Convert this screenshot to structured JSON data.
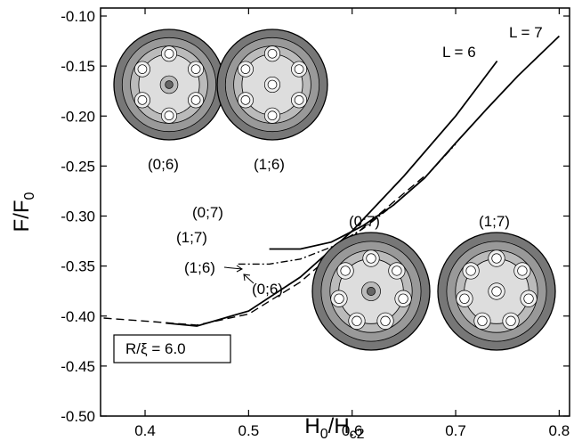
{
  "chart_data": {
    "type": "line",
    "xlabel": [
      "H",
      "0",
      "/H",
      "c2"
    ],
    "ylabel": [
      "F/F",
      "0"
    ],
    "xlim": [
      0.357,
      0.81
    ],
    "xticks": [
      0.4,
      0.5,
      0.6,
      0.7,
      0.8
    ],
    "ylim": [
      -0.5,
      -0.1
    ],
    "yticks": [
      {
        "value": -0.5,
        "label": "-0.50"
      },
      {
        "value": -0.45,
        "label": "-0.45"
      },
      {
        "value": -0.4,
        "label": "-0.40"
      },
      {
        "value": -0.35,
        "label": "-0.35"
      },
      {
        "value": -0.3,
        "label": "-0.30"
      },
      {
        "value": -0.25,
        "label": "-0.25"
      },
      {
        "value": -0.2,
        "label": "-0.20"
      },
      {
        "value": -0.15,
        "label": "-0.15"
      },
      {
        "value": -0.1,
        "label": "-0.10"
      }
    ],
    "series": [
      {
        "name": "(0;7)",
        "color": "#000",
        "dash": "solid",
        "x": [
          0.52,
          0.55,
          0.58,
          0.61,
          0.64,
          0.67,
          0.7,
          0.73,
          0.76,
          0.8
        ],
        "values": [
          -0.333,
          -0.333,
          -0.326,
          -0.31,
          -0.289,
          -0.262,
          -0.227,
          -0.193,
          -0.16,
          -0.12
        ]
      },
      {
        "name": "(1;7)",
        "color": "#000",
        "dash": "dashdot",
        "x": [
          0.49,
          0.52,
          0.55,
          0.58,
          0.61,
          0.64,
          0.67,
          0.7
        ],
        "values": [
          -0.348,
          -0.348,
          -0.343,
          -0.331,
          -0.313,
          -0.289,
          -0.262,
          -0.228
        ]
      },
      {
        "name": "(1;6)",
        "color": "#000",
        "dash": "dashed",
        "x": [
          0.36,
          0.4,
          0.45,
          0.5,
          0.55,
          0.6,
          0.64,
          0.67
        ],
        "values": [
          -0.402,
          -0.405,
          -0.409,
          -0.398,
          -0.366,
          -0.321,
          -0.286,
          -0.26
        ]
      },
      {
        "name": "(0;6)",
        "color": "#000",
        "dash": "solid",
        "x": [
          0.42,
          0.45,
          0.5,
          0.55,
          0.6,
          0.65,
          0.7,
          0.74
        ],
        "values": [
          -0.407,
          -0.41,
          -0.395,
          -0.361,
          -0.315,
          -0.26,
          -0.2,
          -0.145
        ]
      }
    ],
    "annotations": [
      "L = 6",
      "L = 7",
      "R/ξ = 6.0",
      "(0;6)",
      "(1;6)",
      "(0;7)",
      "(1;7)"
    ]
  }
}
